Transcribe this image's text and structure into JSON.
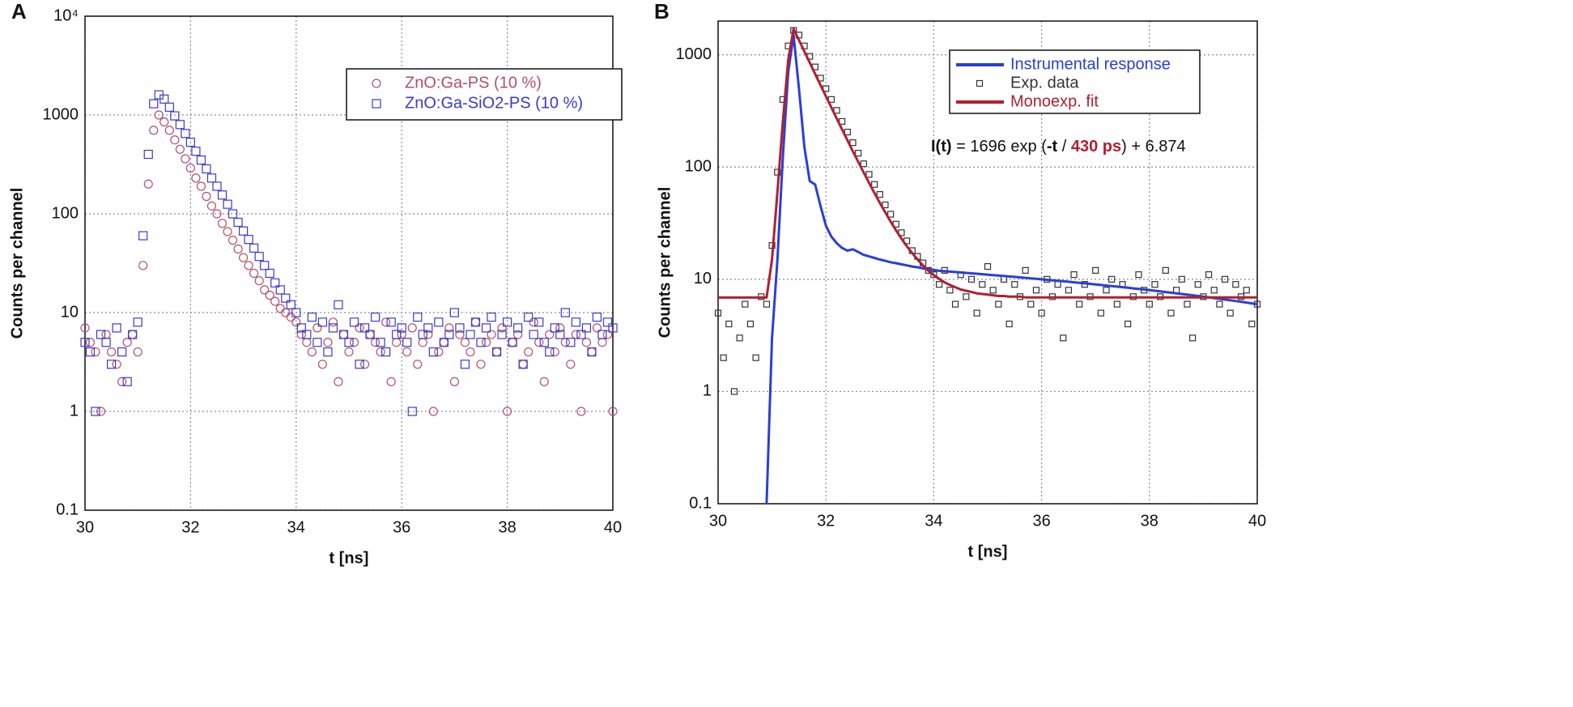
{
  "chart_data": [
    {
      "type": "scatter",
      "panel": "A",
      "xlabel": "t [ns]",
      "ylabel": "Counts per channel",
      "log_y": true,
      "grid": true,
      "xlim": [
        30,
        40
      ],
      "xticks": [
        30,
        32,
        34,
        36,
        38,
        40
      ],
      "ylim": [
        0.1,
        10000
      ],
      "yticks": [
        0.1,
        1,
        10,
        100,
        1000,
        {
          "value": 10000,
          "label": "10⁴"
        }
      ],
      "x": [
        30,
        30.1,
        30.2,
        30.3,
        30.4,
        30.5,
        30.6,
        30.7,
        30.8,
        30.9,
        31,
        31.1,
        31.2,
        31.3,
        31.4,
        31.5,
        31.6,
        31.7,
        31.8,
        31.9,
        32,
        32.1,
        32.2,
        32.3,
        32.4,
        32.5,
        32.6,
        32.7,
        32.8,
        32.9,
        33,
        33.1,
        33.2,
        33.3,
        33.4,
        33.5,
        33.6,
        33.7,
        33.8,
        33.9,
        34,
        34.1,
        34.2,
        34.3,
        34.4,
        34.5,
        34.6,
        34.7,
        34.8,
        34.9,
        35,
        35.1,
        35.2,
        35.3,
        35.4,
        35.5,
        35.6,
        35.7,
        35.8,
        35.9,
        36,
        36.1,
        36.2,
        36.3,
        36.4,
        36.5,
        36.6,
        36.7,
        36.8,
        36.9,
        37,
        37.1,
        37.2,
        37.3,
        37.4,
        37.5,
        37.6,
        37.7,
        37.8,
        37.9,
        38,
        38.1,
        38.2,
        38.3,
        38.4,
        38.5,
        38.6,
        38.7,
        38.8,
        38.9,
        39,
        39.1,
        39.2,
        39.3,
        39.4,
        39.5,
        39.6,
        39.7,
        39.8,
        39.9,
        40
      ],
      "series": [
        {
          "name": "ZnO:Ga-PS (10 %)",
          "color": "#b0506a",
          "marker": "circle",
          "values": [
            7,
            5,
            4,
            1,
            6,
            4,
            3,
            2,
            5,
            6,
            4,
            30,
            200,
            700,
            1000,
            850,
            700,
            560,
            450,
            360,
            290,
            230,
            190,
            150,
            120,
            100,
            80,
            66,
            54,
            44,
            36,
            30,
            25,
            21,
            17,
            15,
            13,
            11,
            10,
            9,
            8,
            6,
            5,
            4,
            7,
            3,
            5,
            8,
            2,
            6,
            4,
            5,
            7,
            3,
            6,
            5,
            4,
            8,
            2,
            5,
            6,
            4,
            7,
            3,
            5,
            6,
            1,
            4,
            5,
            7,
            2,
            6,
            5,
            4,
            8,
            3,
            5,
            6,
            4,
            7,
            1,
            5,
            6,
            3,
            4,
            8,
            5,
            2,
            6,
            4,
            7,
            5,
            3,
            6,
            1,
            5,
            4,
            7,
            5,
            6,
            1
          ]
        },
        {
          "name": "ZnO:Ga-SiO2-PS (10 %)",
          "color": "#3a3acc",
          "marker": "square",
          "values": [
            5,
            4,
            1,
            6,
            5,
            3,
            7,
            4,
            2,
            6,
            8,
            60,
            400,
            1300,
            1600,
            1450,
            1200,
            980,
            800,
            650,
            530,
            430,
            350,
            285,
            230,
            190,
            155,
            125,
            100,
            82,
            67,
            55,
            45,
            37,
            30,
            25,
            20,
            17,
            14,
            12,
            10,
            7,
            6,
            9,
            5,
            8,
            4,
            7,
            12,
            6,
            5,
            8,
            3,
            7,
            6,
            9,
            5,
            4,
            8,
            6,
            7,
            5,
            1,
            9,
            6,
            7,
            4,
            8,
            5,
            6,
            10,
            7,
            3,
            6,
            8,
            5,
            7,
            9,
            4,
            6,
            8,
            5,
            7,
            3,
            9,
            6,
            8,
            5,
            4,
            7,
            6,
            10,
            5,
            8,
            6,
            7,
            4,
            9,
            6,
            8,
            7
          ]
        }
      ]
    },
    {
      "type": "line",
      "panel": "B",
      "xlabel": "t [ns]",
      "ylabel": "Counts per channel",
      "log_y": true,
      "grid": true,
      "xlim": [
        30,
        40
      ],
      "xticks": [
        30,
        32,
        34,
        36,
        38,
        40
      ],
      "ylim": [
        0.1,
        2000
      ],
      "yticks": [
        0.1,
        1,
        10,
        100,
        1000
      ],
      "annotation": [
        "I(t)",
        " = 1696 exp (",
        "-t",
        " / ",
        "430 ps",
        ") + 6.874"
      ],
      "x": [
        30,
        30.1,
        30.2,
        30.3,
        30.4,
        30.5,
        30.6,
        30.7,
        30.8,
        30.9,
        31,
        31.1,
        31.2,
        31.3,
        31.4,
        31.5,
        31.6,
        31.7,
        31.8,
        31.9,
        32,
        32.1,
        32.2,
        32.3,
        32.4,
        32.5,
        32.6,
        32.7,
        32.8,
        32.9,
        33,
        33.1,
        33.2,
        33.3,
        33.4,
        33.5,
        33.6,
        33.7,
        33.8,
        33.9,
        34,
        34.1,
        34.2,
        34.3,
        34.4,
        34.5,
        34.6,
        34.7,
        34.8,
        34.9,
        35,
        35.1,
        35.2,
        35.3,
        35.4,
        35.5,
        35.6,
        35.7,
        35.8,
        35.9,
        36,
        36.1,
        36.2,
        36.3,
        36.4,
        36.5,
        36.6,
        36.7,
        36.8,
        36.9,
        37,
        37.1,
        37.2,
        37.3,
        37.4,
        37.5,
        37.6,
        37.7,
        37.8,
        37.9,
        38,
        38.1,
        38.2,
        38.3,
        38.4,
        38.5,
        38.6,
        38.7,
        38.8,
        38.9,
        39,
        39.1,
        39.2,
        39.3,
        39.4,
        39.5,
        39.6,
        39.7,
        39.8,
        39.9,
        40
      ],
      "series": [
        {
          "name": "Instrumental response",
          "color": "#2a3fd6",
          "marker": "line",
          "values": [
            null,
            null,
            null,
            null,
            null,
            null,
            null,
            null,
            null,
            0.1,
            3,
            15,
            120,
            700,
            1500,
            500,
            150,
            75,
            70,
            45,
            30,
            24,
            21,
            19,
            18,
            18.5,
            17.5,
            16.5,
            16,
            15.5,
            15,
            14.6,
            14.2,
            13.9,
            13.6,
            13.3,
            13,
            12.8,
            12.5,
            12.3,
            12.1,
            11.9,
            11.8,
            11.7,
            11.6,
            11.5,
            11.4,
            11.3,
            11.2,
            11.1,
            11.0,
            10.9,
            10.8,
            10.7,
            10.6,
            10.5,
            10.4,
            10.3,
            10.2,
            10.1,
            10.0,
            9.9,
            9.8,
            9.7,
            9.6,
            9.5,
            9.4,
            9.3,
            9.2,
            9.1,
            9.0,
            8.9,
            8.8,
            8.7,
            8.6,
            8.5,
            8.4,
            8.3,
            8.2,
            8.1,
            8.0,
            7.9,
            7.8,
            7.7,
            7.6,
            7.5,
            7.4,
            7.3,
            7.2,
            7.1,
            7.0,
            6.9,
            6.8,
            6.7,
            6.6,
            6.5,
            6.4,
            6.3,
            6.2,
            6.1,
            6.0
          ]
        },
        {
          "name": "Exp. data",
          "color": "#333333",
          "marker": "square",
          "values": [
            5,
            2,
            4,
            1,
            3,
            6,
            4,
            2,
            7,
            6,
            20,
            90,
            400,
            1200,
            1650,
            1500,
            1200,
            970,
            780,
            620,
            500,
            400,
            320,
            255,
            205,
            165,
            133,
            107,
            86,
            70,
            57,
            46,
            38,
            31,
            26,
            22,
            18,
            16,
            14,
            12,
            11,
            9,
            12,
            8,
            6,
            11,
            7,
            10,
            5,
            9,
            13,
            8,
            6,
            10,
            4,
            9,
            7,
            12,
            6,
            8,
            5,
            10,
            7,
            9,
            3,
            8,
            11,
            6,
            9,
            7,
            12,
            5,
            8,
            10,
            6,
            9,
            4,
            7,
            11,
            8,
            6,
            9,
            7,
            12,
            5,
            8,
            10,
            6,
            3,
            9,
            7,
            11,
            8,
            6,
            10,
            5,
            9,
            7,
            8,
            4,
            6
          ]
        },
        {
          "name": "Monoexp. fit",
          "color": "#b02030",
          "marker": "line",
          "values": [
            6.874,
            6.874,
            6.874,
            6.874,
            6.874,
            6.874,
            6.874,
            6.874,
            6.874,
            6.874,
            15,
            60,
            250,
            900,
            1703,
            1351,
            1072,
            851,
            676,
            537,
            427,
            340,
            271,
            216,
            173,
            138,
            111,
            89.4,
            72.3,
            58.7,
            48,
            39.4,
            32.7,
            27.3,
            23.1,
            19.7,
            17.1,
            15.0,
            13.3,
            11.9,
            10.9,
            10.1,
            9.4,
            8.9,
            8.5,
            8.1,
            7.9,
            7.7,
            7.5,
            7.4,
            7.3,
            7.2,
            7.1,
            7.1,
            7.0,
            7.0,
            7.0,
            6.9,
            6.9,
            6.9,
            6.9,
            6.9,
            6.9,
            6.9,
            6.9,
            6.9,
            6.9,
            6.9,
            6.9,
            6.9,
            6.9,
            6.9,
            6.9,
            6.9,
            6.9,
            6.9,
            6.9,
            6.9,
            6.9,
            6.9,
            6.9,
            6.9,
            6.9,
            6.9,
            6.9,
            6.9,
            6.9,
            6.9,
            6.9,
            6.9,
            6.9,
            6.9,
            6.9,
            6.9,
            6.9,
            6.9,
            6.9,
            6.9,
            6.9,
            6.9,
            6.9
          ]
        }
      ]
    }
  ]
}
